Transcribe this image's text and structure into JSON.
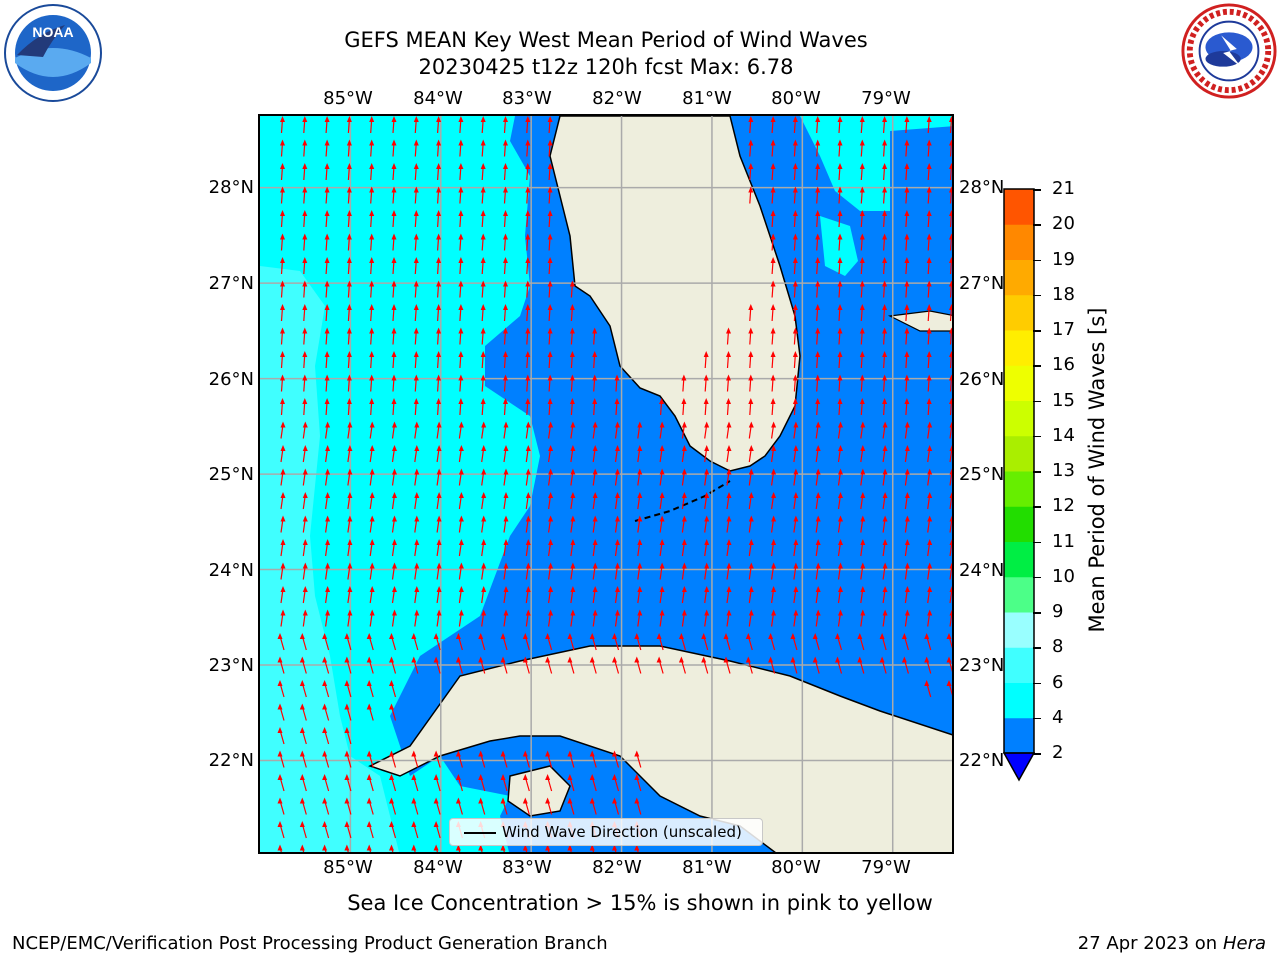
{
  "title_line1": "GEFS MEAN Key West Mean Period of Wind Waves",
  "title_line2": "20230425 t12z 120h fcst   Max: 6.78",
  "map": {
    "lon_labels": [
      "85°W",
      "84°W",
      "83°W",
      "82°W",
      "81°W",
      "80°W",
      "79°W"
    ],
    "lon_values": [
      -85,
      -84,
      -83,
      -82,
      -81,
      -80,
      -79
    ],
    "lat_labels": [
      "28°N",
      "27°N",
      "26°N",
      "25°N",
      "24°N",
      "23°N",
      "22°N"
    ],
    "lat_values": [
      28,
      27,
      26,
      25,
      24,
      23,
      22
    ],
    "extent": {
      "lon_min": -86.0,
      "lon_max": -78.3,
      "lat_min": 21.0,
      "lat_max": 28.75
    },
    "ocean_light_color": "#00ffff",
    "ocean_mid_color": "#40ffff",
    "ocean_blue_color": "#0080ff",
    "ocean_deep_color": "#0000ff",
    "land_color": "#eeeedd",
    "arrow_color": "#ff0000"
  },
  "legend": {
    "label": "Wind Wave Direction (unscaled)"
  },
  "colorbar": {
    "title": "Mean Period of Wind Waves [s]",
    "ticks": [
      "21",
      "20",
      "19",
      "18",
      "17",
      "16",
      "15",
      "14",
      "13",
      "12",
      "11",
      "10",
      "9",
      "8",
      "6",
      "4",
      "2"
    ],
    "levels": [
      2,
      4,
      6,
      8,
      9,
      10,
      11,
      12,
      13,
      14,
      15,
      16,
      17,
      18,
      19,
      20,
      21
    ],
    "colors": [
      "#0080ff",
      "#00ffff",
      "#40ffff",
      "#99ffff",
      "#4cff88",
      "#00ee44",
      "#22dd00",
      "#66ee00",
      "#aaee00",
      "#ccff00",
      "#eeff00",
      "#ffee00",
      "#ffcc00",
      "#ffaa00",
      "#ff8800",
      "#ff5500",
      "#ff2200",
      "#ff0000"
    ],
    "under_color": "#0000ff"
  },
  "bottom_note": "Sea Ice Concentration > 15% is shown in pink to yellow",
  "footer_left": "NCEP/EMC/Verification Post Processing Product Generation Branch",
  "footer_right_date": "27 Apr 2023 on ",
  "footer_right_host": "Hera",
  "logos": {
    "left": {
      "name": "NOAA",
      "text": "NOAA"
    },
    "right": {
      "name": "National Weather Service"
    }
  }
}
